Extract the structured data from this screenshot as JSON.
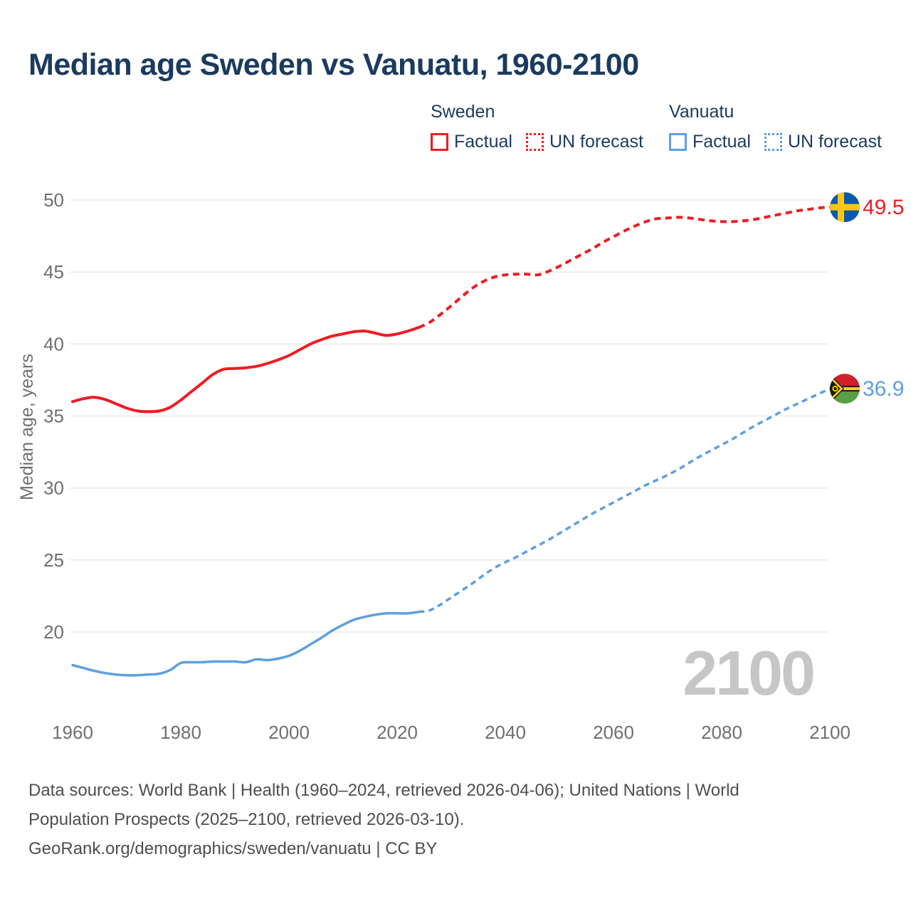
{
  "title": "Median age Sweden vs Vanuatu, 1960-2100",
  "colors": {
    "navy": "#1b3a5e",
    "tick_gray": "#6f6f6f",
    "footer_gray": "#4e4e4e",
    "grid": "#e7e7e7",
    "watermark_gray": "#c6c6c6",
    "sweden_red": "#ed1c24",
    "vanuatu_blue": "#5e9fdf"
  },
  "legend": {
    "groups": [
      {
        "name": "Sweden",
        "color": "#ed1c24",
        "items": [
          {
            "label": "Factual",
            "style": "solid"
          },
          {
            "label": "UN forecast",
            "style": "dotted"
          }
        ]
      },
      {
        "name": "Vanuatu",
        "color": "#5e9fdf",
        "items": [
          {
            "label": "Factual",
            "style": "solid"
          },
          {
            "label": "UN forecast",
            "style": "dotted"
          }
        ]
      }
    ]
  },
  "footer": {
    "line1": "Data sources: World Bank | Health (1960–2024, retrieved 2026-04-06); United Nations | World",
    "line2": "Population Prospects (2025–2100, retrieved 2026-03-10).",
    "line3": "GeoRank.org/demographics/sweden/vanuatu | CC BY"
  },
  "chart_data": {
    "type": "line",
    "title": "Median age Sweden vs Vanuatu, 1960-2100",
    "xlabel": "",
    "ylabel": "Median age, years",
    "watermark": "2100",
    "x_ticks": [
      1960,
      1980,
      2000,
      2020,
      2040,
      2060,
      2080,
      2100
    ],
    "y_ticks": [
      20,
      25,
      30,
      35,
      40,
      45,
      50
    ],
    "xlim": [
      1960,
      2100
    ],
    "ylim": [
      17,
      50
    ],
    "grid": "horizontal only",
    "legend_position": "top right",
    "series": [
      {
        "id": "sweden-factual",
        "name": "Sweden Factual",
        "color": "#ed1c24",
        "dash": "solid",
        "width": 4,
        "dasharray": "",
        "points": [
          [
            1960,
            36.0
          ],
          [
            1962,
            36.2
          ],
          [
            1964,
            36.3
          ],
          [
            1966,
            36.15
          ],
          [
            1968,
            35.85
          ],
          [
            1970,
            35.55
          ],
          [
            1972,
            35.35
          ],
          [
            1974,
            35.3
          ],
          [
            1976,
            35.35
          ],
          [
            1978,
            35.6
          ],
          [
            1980,
            36.1
          ],
          [
            1982,
            36.7
          ],
          [
            1984,
            37.3
          ],
          [
            1986,
            37.9
          ],
          [
            1988,
            38.25
          ],
          [
            1990,
            38.3
          ],
          [
            1992,
            38.35
          ],
          [
            1994,
            38.45
          ],
          [
            1996,
            38.65
          ],
          [
            1998,
            38.9
          ],
          [
            2000,
            39.2
          ],
          [
            2002,
            39.6
          ],
          [
            2004,
            40.0
          ],
          [
            2006,
            40.3
          ],
          [
            2008,
            40.55
          ],
          [
            2010,
            40.7
          ],
          [
            2012,
            40.85
          ],
          [
            2014,
            40.9
          ],
          [
            2016,
            40.75
          ],
          [
            2018,
            40.6
          ],
          [
            2020,
            40.7
          ],
          [
            2022,
            40.9
          ],
          [
            2024,
            41.15
          ]
        ]
      },
      {
        "id": "sweden-forecast",
        "name": "Sweden UN forecast",
        "color": "#ed1c24",
        "dash": "dashed",
        "width": 4,
        "dasharray": "9 6.5",
        "points": [
          [
            2024,
            41.15
          ],
          [
            2026,
            41.5
          ],
          [
            2028,
            42.05
          ],
          [
            2030,
            42.65
          ],
          [
            2032,
            43.3
          ],
          [
            2034,
            43.9
          ],
          [
            2036,
            44.35
          ],
          [
            2038,
            44.65
          ],
          [
            2040,
            44.8
          ],
          [
            2042,
            44.85
          ],
          [
            2044,
            44.85
          ],
          [
            2046,
            44.8
          ],
          [
            2048,
            45.05
          ],
          [
            2050,
            45.4
          ],
          [
            2052,
            45.8
          ],
          [
            2054,
            46.2
          ],
          [
            2056,
            46.6
          ],
          [
            2058,
            47.05
          ],
          [
            2060,
            47.45
          ],
          [
            2062,
            47.85
          ],
          [
            2064,
            48.2
          ],
          [
            2066,
            48.5
          ],
          [
            2068,
            48.7
          ],
          [
            2070,
            48.75
          ],
          [
            2072,
            48.8
          ],
          [
            2074,
            48.75
          ],
          [
            2076,
            48.65
          ],
          [
            2078,
            48.55
          ],
          [
            2080,
            48.5
          ],
          [
            2082,
            48.5
          ],
          [
            2084,
            48.55
          ],
          [
            2086,
            48.65
          ],
          [
            2088,
            48.8
          ],
          [
            2090,
            48.95
          ],
          [
            2092,
            49.1
          ],
          [
            2094,
            49.25
          ],
          [
            2096,
            49.35
          ],
          [
            2098,
            49.45
          ],
          [
            2100,
            49.5
          ]
        ]
      },
      {
        "id": "vanuatu-factual",
        "name": "Vanuatu Factual",
        "color": "#5e9fdf",
        "dash": "solid",
        "width": 3.5,
        "dasharray": "",
        "points": [
          [
            1960,
            17.7
          ],
          [
            1962,
            17.5
          ],
          [
            1964,
            17.3
          ],
          [
            1966,
            17.15
          ],
          [
            1968,
            17.05
          ],
          [
            1970,
            17.0
          ],
          [
            1972,
            17.0
          ],
          [
            1974,
            17.05
          ],
          [
            1976,
            17.1
          ],
          [
            1978,
            17.35
          ],
          [
            1980,
            17.85
          ],
          [
            1982,
            17.9
          ],
          [
            1984,
            17.9
          ],
          [
            1986,
            17.95
          ],
          [
            1988,
            17.95
          ],
          [
            1990,
            17.95
          ],
          [
            1992,
            17.9
          ],
          [
            1994,
            18.1
          ],
          [
            1996,
            18.05
          ],
          [
            1998,
            18.15
          ],
          [
            2000,
            18.35
          ],
          [
            2002,
            18.7
          ],
          [
            2004,
            19.15
          ],
          [
            2006,
            19.6
          ],
          [
            2008,
            20.1
          ],
          [
            2010,
            20.5
          ],
          [
            2012,
            20.85
          ],
          [
            2014,
            21.05
          ],
          [
            2016,
            21.2
          ],
          [
            2018,
            21.3
          ],
          [
            2020,
            21.3
          ],
          [
            2022,
            21.3
          ],
          [
            2024,
            21.4
          ]
        ]
      },
      {
        "id": "vanuatu-forecast",
        "name": "Vanuatu UN forecast",
        "color": "#5e9fdf",
        "dash": "dashed",
        "width": 3.5,
        "dasharray": "8 6",
        "points": [
          [
            2024,
            21.4
          ],
          [
            2026,
            21.5
          ],
          [
            2028,
            21.9
          ],
          [
            2030,
            22.4
          ],
          [
            2032,
            22.9
          ],
          [
            2034,
            23.4
          ],
          [
            2036,
            23.95
          ],
          [
            2038,
            24.45
          ],
          [
            2040,
            24.85
          ],
          [
            2042,
            25.2
          ],
          [
            2044,
            25.6
          ],
          [
            2046,
            26.0
          ],
          [
            2048,
            26.4
          ],
          [
            2050,
            26.85
          ],
          [
            2052,
            27.3
          ],
          [
            2054,
            27.75
          ],
          [
            2056,
            28.2
          ],
          [
            2058,
            28.6
          ],
          [
            2060,
            29.0
          ],
          [
            2062,
            29.4
          ],
          [
            2064,
            29.8
          ],
          [
            2066,
            30.2
          ],
          [
            2068,
            30.55
          ],
          [
            2070,
            30.9
          ],
          [
            2072,
            31.3
          ],
          [
            2074,
            31.75
          ],
          [
            2076,
            32.2
          ],
          [
            2078,
            32.6
          ],
          [
            2080,
            33.0
          ],
          [
            2082,
            33.4
          ],
          [
            2084,
            33.85
          ],
          [
            2086,
            34.3
          ],
          [
            2088,
            34.7
          ],
          [
            2090,
            35.1
          ],
          [
            2092,
            35.5
          ],
          [
            2094,
            35.85
          ],
          [
            2096,
            36.2
          ],
          [
            2098,
            36.55
          ],
          [
            2100,
            36.9
          ]
        ]
      }
    ],
    "end_markers": [
      {
        "flag": "sweden",
        "year": 2100,
        "value": 49.5,
        "label": "49.5",
        "label_color": "#ed1c24"
      },
      {
        "flag": "vanuatu",
        "year": 2100,
        "value": 36.9,
        "label": "36.9",
        "label_color": "#5e9fdf"
      }
    ]
  }
}
